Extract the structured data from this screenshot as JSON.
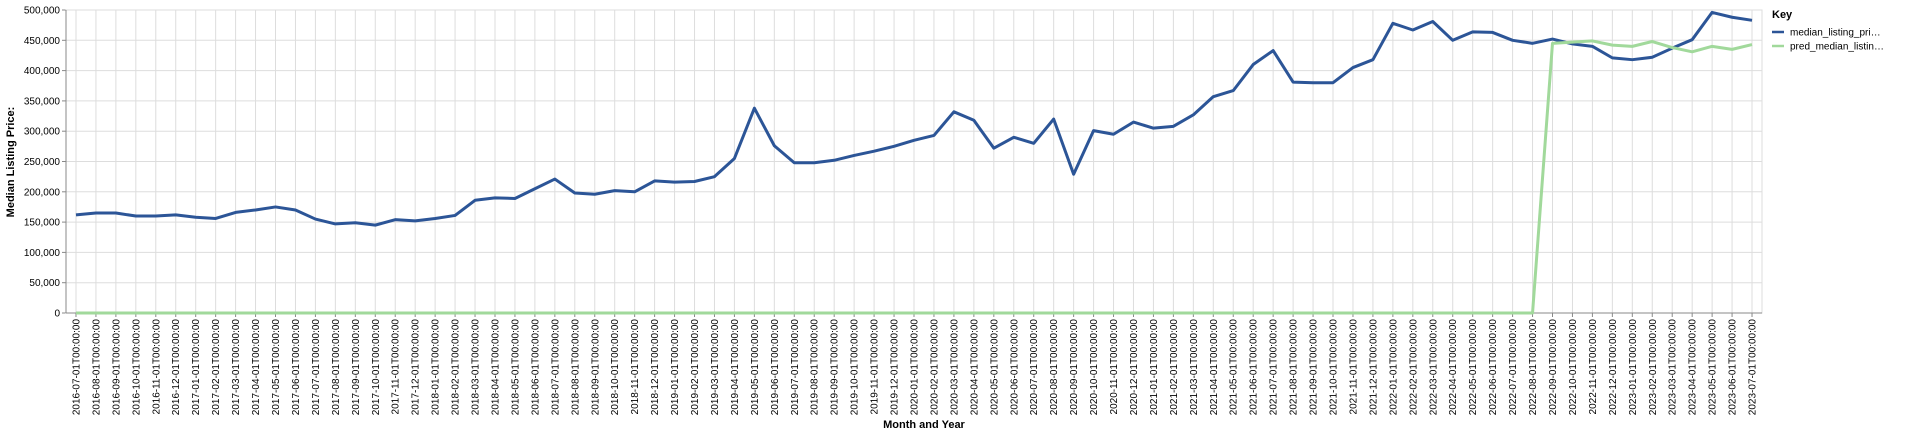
{
  "chart_data": {
    "type": "line",
    "x_label": "Month and Year",
    "y_label": "Median Listing Price:",
    "legend_title": "Key",
    "categories": [
      "2016-07-01T00:00:00",
      "2016-08-01T00:00:00",
      "2016-09-01T00:00:00",
      "2016-10-01T00:00:00",
      "2016-11-01T00:00:00",
      "2016-12-01T00:00:00",
      "2017-01-01T00:00:00",
      "2017-02-01T00:00:00",
      "2017-03-01T00:00:00",
      "2017-04-01T00:00:00",
      "2017-05-01T00:00:00",
      "2017-06-01T00:00:00",
      "2017-07-01T00:00:00",
      "2017-08-01T00:00:00",
      "2017-09-01T00:00:00",
      "2017-10-01T00:00:00",
      "2017-11-01T00:00:00",
      "2017-12-01T00:00:00",
      "2018-01-01T00:00:00",
      "2018-02-01T00:00:00",
      "2018-03-01T00:00:00",
      "2018-04-01T00:00:00",
      "2018-05-01T00:00:00",
      "2018-06-01T00:00:00",
      "2018-07-01T00:00:00",
      "2018-08-01T00:00:00",
      "2018-09-01T00:00:00",
      "2018-10-01T00:00:00",
      "2018-11-01T00:00:00",
      "2018-12-01T00:00:00",
      "2019-01-01T00:00:00",
      "2019-02-01T00:00:00",
      "2019-03-01T00:00:00",
      "2019-04-01T00:00:00",
      "2019-05-01T00:00:00",
      "2019-06-01T00:00:00",
      "2019-07-01T00:00:00",
      "2019-08-01T00:00:00",
      "2019-09-01T00:00:00",
      "2019-10-01T00:00:00",
      "2019-11-01T00:00:00",
      "2019-12-01T00:00:00",
      "2020-01-01T00:00:00",
      "2020-02-01T00:00:00",
      "2020-03-01T00:00:00",
      "2020-04-01T00:00:00",
      "2020-05-01T00:00:00",
      "2020-06-01T00:00:00",
      "2020-07-01T00:00:00",
      "2020-08-01T00:00:00",
      "2020-09-01T00:00:00",
      "2020-10-01T00:00:00",
      "2020-11-01T00:00:00",
      "2020-12-01T00:00:00",
      "2021-01-01T00:00:00",
      "2021-02-01T00:00:00",
      "2021-03-01T00:00:00",
      "2021-04-01T00:00:00",
      "2021-05-01T00:00:00",
      "2021-06-01T00:00:00",
      "2021-07-01T00:00:00",
      "2021-08-01T00:00:00",
      "2021-09-01T00:00:00",
      "2021-10-01T00:00:00",
      "2021-11-01T00:00:00",
      "2021-12-01T00:00:00",
      "2022-01-01T00:00:00",
      "2022-02-01T00:00:00",
      "2022-03-01T00:00:00",
      "2022-04-01T00:00:00",
      "2022-05-01T00:00:00",
      "2022-06-01T00:00:00",
      "2022-07-01T00:00:00",
      "2022-08-01T00:00:00",
      "2022-09-01T00:00:00",
      "2022-10-01T00:00:00",
      "2022-11-01T00:00:00",
      "2022-12-01T00:00:00",
      "2023-01-01T00:00:00",
      "2023-02-01T00:00:00",
      "2023-03-01T00:00:00",
      "2023-04-01T00:00:00",
      "2023-05-01T00:00:00",
      "2023-06-01T00:00:00",
      "2023-07-01T00:00:00"
    ],
    "series": [
      {
        "name": "median_listing_pri…",
        "color": "#2c5597",
        "values": [
          162000,
          165000,
          165000,
          160000,
          160000,
          162000,
          158000,
          156000,
          166000,
          170000,
          175000,
          170000,
          155000,
          147000,
          149000,
          145000,
          154000,
          152000,
          156000,
          161000,
          186000,
          190000,
          189000,
          205000,
          221000,
          198000,
          196000,
          202000,
          200000,
          218000,
          216000,
          217000,
          225000,
          255000,
          338000,
          276000,
          248000,
          248000,
          252000,
          260000,
          267000,
          275000,
          285000,
          293000,
          332000,
          318000,
          272000,
          290000,
          280000,
          320000,
          229000,
          301000,
          295000,
          315000,
          305000,
          308000,
          327000,
          357000,
          367000,
          410000,
          433000,
          381000,
          380000,
          380000,
          405000,
          418000,
          478000,
          467000,
          481000,
          450000,
          464000,
          463000,
          450000,
          445000,
          452000,
          444000,
          440000,
          421000,
          418000,
          422000,
          437000,
          451000,
          496000,
          488000,
          483000
        ]
      },
      {
        "name": "pred_median_listin…",
        "color": "#a1d99b",
        "values": [
          0,
          0,
          0,
          0,
          0,
          0,
          0,
          0,
          0,
          0,
          0,
          0,
          0,
          0,
          0,
          0,
          0,
          0,
          0,
          0,
          0,
          0,
          0,
          0,
          0,
          0,
          0,
          0,
          0,
          0,
          0,
          0,
          0,
          0,
          0,
          0,
          0,
          0,
          0,
          0,
          0,
          0,
          0,
          0,
          0,
          0,
          0,
          0,
          0,
          0,
          0,
          0,
          0,
          0,
          0,
          0,
          0,
          0,
          0,
          0,
          0,
          0,
          0,
          0,
          0,
          0,
          0,
          0,
          0,
          0,
          0,
          0,
          0,
          0,
          445000,
          447000,
          449000,
          442000,
          440000,
          448000,
          438000,
          431000,
          440000,
          435000,
          443000
        ]
      }
    ],
    "ylim": [
      0,
      500000
    ],
    "yticks": [
      0,
      {
        "value": 50000,
        "label": "50,000"
      },
      {
        "value": 100000,
        "label": "100,000"
      },
      {
        "value": 150000,
        "label": "150,000"
      },
      {
        "value": 200000,
        "label": "200,000"
      },
      {
        "value": 250000,
        "label": "250,000"
      },
      {
        "value": 300000,
        "label": "300,000"
      },
      {
        "value": 350000,
        "label": "350,000"
      },
      {
        "value": 400000,
        "label": "400,000"
      },
      {
        "value": 450000,
        "label": "450,000"
      },
      {
        "value": {
          "value": 500000,
          "label": "500,000"
        },
        "label": "500,000"
      }
    ],
    "grid": true,
    "legend": "right"
  }
}
